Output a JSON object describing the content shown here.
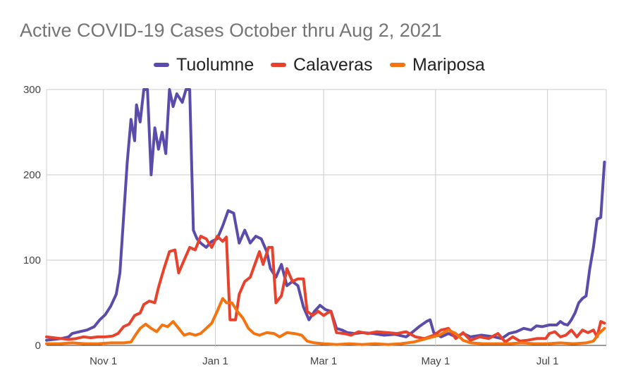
{
  "chart_data": {
    "type": "line",
    "title": "Active COVID-19 Cases October thru Aug 2, 2021",
    "xlabel": "",
    "ylabel": "",
    "ylim": [
      0,
      300
    ],
    "y_ticks": [
      "0",
      "100",
      "200",
      "300"
    ],
    "x_range": [
      "2020-10-01",
      "2021-08-02"
    ],
    "x_ticks": [
      {
        "date": "2020-11-01",
        "label": "Nov 1"
      },
      {
        "date": "2021-01-01",
        "label": "Jan 1"
      },
      {
        "date": "2021-03-01",
        "label": "Mar 1"
      },
      {
        "date": "2021-05-01",
        "label": "May 1"
      },
      {
        "date": "2021-07-01",
        "label": "Jul 1"
      }
    ],
    "grid": true,
    "legend_position": "top",
    "series": [
      {
        "name": "Tuolumne",
        "color": "#5b4bab",
        "points": [
          [
            "2020-10-01",
            6
          ],
          [
            "2020-10-05",
            7
          ],
          [
            "2020-10-09",
            8
          ],
          [
            "2020-10-13",
            10
          ],
          [
            "2020-10-15",
            14
          ],
          [
            "2020-10-19",
            16
          ],
          [
            "2020-10-23",
            18
          ],
          [
            "2020-10-27",
            22
          ],
          [
            "2020-10-30",
            30
          ],
          [
            "2020-11-02",
            36
          ],
          [
            "2020-11-05",
            46
          ],
          [
            "2020-11-08",
            60
          ],
          [
            "2020-11-10",
            85
          ],
          [
            "2020-11-12",
            150
          ],
          [
            "2020-11-14",
            215
          ],
          [
            "2020-11-16",
            265
          ],
          [
            "2020-11-18",
            240
          ],
          [
            "2020-11-19",
            282
          ],
          [
            "2020-11-21",
            262
          ],
          [
            "2020-11-23",
            300
          ],
          [
            "2020-11-25",
            300
          ],
          [
            "2020-11-27",
            200
          ],
          [
            "2020-11-29",
            255
          ],
          [
            "2020-12-01",
            230
          ],
          [
            "2020-12-03",
            250
          ],
          [
            "2020-12-05",
            225
          ],
          [
            "2020-12-07",
            300
          ],
          [
            "2020-12-09",
            280
          ],
          [
            "2020-12-11",
            295
          ],
          [
            "2020-12-14",
            285
          ],
          [
            "2020-12-16",
            300
          ],
          [
            "2020-12-18",
            300
          ],
          [
            "2020-12-20",
            135
          ],
          [
            "2020-12-22",
            125
          ],
          [
            "2020-12-24",
            120
          ],
          [
            "2020-12-27",
            115
          ],
          [
            "2020-12-30",
            122
          ],
          [
            "2021-01-02",
            125
          ],
          [
            "2021-01-05",
            140
          ],
          [
            "2021-01-08",
            158
          ],
          [
            "2021-01-11",
            155
          ],
          [
            "2021-01-14",
            120
          ],
          [
            "2021-01-17",
            135
          ],
          [
            "2021-01-20",
            120
          ],
          [
            "2021-01-23",
            128
          ],
          [
            "2021-01-26",
            125
          ],
          [
            "2021-01-29",
            110
          ],
          [
            "2021-01-31",
            90
          ],
          [
            "2021-02-03",
            80
          ],
          [
            "2021-02-06",
            95
          ],
          [
            "2021-02-09",
            70
          ],
          [
            "2021-02-12",
            75
          ],
          [
            "2021-02-15",
            70
          ],
          [
            "2021-02-18",
            45
          ],
          [
            "2021-02-21",
            30
          ],
          [
            "2021-02-24",
            40
          ],
          [
            "2021-02-27",
            47
          ],
          [
            "2021-03-02",
            42
          ],
          [
            "2021-03-05",
            40
          ],
          [
            "2021-03-08",
            20
          ],
          [
            "2021-03-11",
            18
          ],
          [
            "2021-03-14",
            15
          ],
          [
            "2021-03-18",
            14
          ],
          [
            "2021-03-22",
            15
          ],
          [
            "2021-03-28",
            14
          ],
          [
            "2021-04-03",
            12
          ],
          [
            "2021-04-09",
            13
          ],
          [
            "2021-04-15",
            10
          ],
          [
            "2021-04-18",
            15
          ],
          [
            "2021-04-22",
            22
          ],
          [
            "2021-04-26",
            28
          ],
          [
            "2021-04-28",
            30
          ],
          [
            "2021-04-30",
            15
          ],
          [
            "2021-05-04",
            10
          ],
          [
            "2021-05-08",
            14
          ],
          [
            "2021-05-12",
            10
          ],
          [
            "2021-05-16",
            14
          ],
          [
            "2021-05-20",
            10
          ],
          [
            "2021-05-26",
            12
          ],
          [
            "2021-06-02",
            10
          ],
          [
            "2021-06-06",
            8
          ],
          [
            "2021-06-10",
            14
          ],
          [
            "2021-06-14",
            16
          ],
          [
            "2021-06-18",
            20
          ],
          [
            "2021-06-22",
            18
          ],
          [
            "2021-06-25",
            23
          ],
          [
            "2021-06-28",
            22
          ],
          [
            "2021-07-02",
            24
          ],
          [
            "2021-07-06",
            24
          ],
          [
            "2021-07-08",
            28
          ],
          [
            "2021-07-10",
            25
          ],
          [
            "2021-07-12",
            24
          ],
          [
            "2021-07-14",
            30
          ],
          [
            "2021-07-16",
            38
          ],
          [
            "2021-07-18",
            50
          ],
          [
            "2021-07-20",
            55
          ],
          [
            "2021-07-22",
            58
          ],
          [
            "2021-07-24",
            90
          ],
          [
            "2021-07-26",
            115
          ],
          [
            "2021-07-28",
            148
          ],
          [
            "2021-07-30",
            150
          ],
          [
            "2021-08-01",
            215
          ]
        ]
      },
      {
        "name": "Calaveras",
        "color": "#e8412c",
        "points": [
          [
            "2020-10-01",
            10
          ],
          [
            "2020-10-05",
            9
          ],
          [
            "2020-10-09",
            8
          ],
          [
            "2020-10-13",
            7
          ],
          [
            "2020-10-17",
            8
          ],
          [
            "2020-10-21",
            10
          ],
          [
            "2020-10-25",
            9
          ],
          [
            "2020-10-29",
            10
          ],
          [
            "2020-11-02",
            10
          ],
          [
            "2020-11-06",
            11
          ],
          [
            "2020-11-09",
            14
          ],
          [
            "2020-11-12",
            22
          ],
          [
            "2020-11-15",
            25
          ],
          [
            "2020-11-18",
            35
          ],
          [
            "2020-11-21",
            38
          ],
          [
            "2020-11-23",
            48
          ],
          [
            "2020-11-26",
            52
          ],
          [
            "2020-11-29",
            50
          ],
          [
            "2020-12-01",
            68
          ],
          [
            "2020-12-04",
            90
          ],
          [
            "2020-12-07",
            110
          ],
          [
            "2020-12-10",
            112
          ],
          [
            "2020-12-12",
            85
          ],
          [
            "2020-12-15",
            100
          ],
          [
            "2020-12-18",
            115
          ],
          [
            "2020-12-21",
            112
          ],
          [
            "2020-12-24",
            128
          ],
          [
            "2020-12-27",
            125
          ],
          [
            "2020-12-30",
            115
          ],
          [
            "2021-01-02",
            128
          ],
          [
            "2021-01-05",
            122
          ],
          [
            "2021-01-07",
            127
          ],
          [
            "2021-01-09",
            30
          ],
          [
            "2021-01-12",
            30
          ],
          [
            "2021-01-14",
            60
          ],
          [
            "2021-01-17",
            75
          ],
          [
            "2021-01-20",
            80
          ],
          [
            "2021-01-22",
            92
          ],
          [
            "2021-01-25",
            110
          ],
          [
            "2021-01-27",
            95
          ],
          [
            "2021-01-30",
            115
          ],
          [
            "2021-02-01",
            115
          ],
          [
            "2021-02-03",
            50
          ],
          [
            "2021-02-06",
            58
          ],
          [
            "2021-02-09",
            90
          ],
          [
            "2021-02-12",
            75
          ],
          [
            "2021-02-15",
            78
          ],
          [
            "2021-02-18",
            78
          ],
          [
            "2021-02-20",
            40
          ],
          [
            "2021-02-23",
            35
          ],
          [
            "2021-02-26",
            40
          ],
          [
            "2021-03-01",
            35
          ],
          [
            "2021-03-03",
            38
          ],
          [
            "2021-03-05",
            40
          ],
          [
            "2021-03-08",
            15
          ],
          [
            "2021-03-12",
            14
          ],
          [
            "2021-03-16",
            12
          ],
          [
            "2021-03-20",
            16
          ],
          [
            "2021-03-25",
            14
          ],
          [
            "2021-03-30",
            16
          ],
          [
            "2021-04-05",
            15
          ],
          [
            "2021-04-10",
            14
          ],
          [
            "2021-04-15",
            16
          ],
          [
            "2021-04-20",
            10
          ],
          [
            "2021-04-25",
            8
          ],
          [
            "2021-04-30",
            12
          ],
          [
            "2021-05-04",
            18
          ],
          [
            "2021-05-08",
            20
          ],
          [
            "2021-05-12",
            8
          ],
          [
            "2021-05-16",
            15
          ],
          [
            "2021-05-20",
            6
          ],
          [
            "2021-05-25",
            10
          ],
          [
            "2021-05-30",
            8
          ],
          [
            "2021-06-04",
            14
          ],
          [
            "2021-06-08",
            4
          ],
          [
            "2021-06-12",
            10
          ],
          [
            "2021-06-16",
            5
          ],
          [
            "2021-06-20",
            6
          ],
          [
            "2021-06-25",
            8
          ],
          [
            "2021-06-30",
            8
          ],
          [
            "2021-07-02",
            14
          ],
          [
            "2021-07-05",
            16
          ],
          [
            "2021-07-08",
            10
          ],
          [
            "2021-07-11",
            12
          ],
          [
            "2021-07-14",
            18
          ],
          [
            "2021-07-17",
            10
          ],
          [
            "2021-07-20",
            18
          ],
          [
            "2021-07-23",
            15
          ],
          [
            "2021-07-26",
            18
          ],
          [
            "2021-07-28",
            10
          ],
          [
            "2021-07-30",
            28
          ],
          [
            "2021-08-01",
            26
          ]
        ]
      },
      {
        "name": "Mariposa",
        "color": "#f5740f",
        "points": [
          [
            "2020-10-01",
            2
          ],
          [
            "2020-10-08",
            2
          ],
          [
            "2020-10-15",
            3
          ],
          [
            "2020-10-22",
            2
          ],
          [
            "2020-10-29",
            2
          ],
          [
            "2020-11-05",
            3
          ],
          [
            "2020-11-12",
            3
          ],
          [
            "2020-11-16",
            4
          ],
          [
            "2020-11-19",
            14
          ],
          [
            "2020-11-21",
            20
          ],
          [
            "2020-11-24",
            25
          ],
          [
            "2020-11-27",
            20
          ],
          [
            "2020-11-30",
            16
          ],
          [
            "2020-12-03",
            24
          ],
          [
            "2020-12-06",
            22
          ],
          [
            "2020-12-09",
            28
          ],
          [
            "2020-12-12",
            20
          ],
          [
            "2020-12-15",
            12
          ],
          [
            "2020-12-18",
            14
          ],
          [
            "2020-12-21",
            12
          ],
          [
            "2020-12-24",
            14
          ],
          [
            "2020-12-27",
            20
          ],
          [
            "2020-12-30",
            26
          ],
          [
            "2021-01-02",
            40
          ],
          [
            "2021-01-05",
            55
          ],
          [
            "2021-01-07",
            50
          ],
          [
            "2021-01-10",
            50
          ],
          [
            "2021-01-13",
            40
          ],
          [
            "2021-01-16",
            32
          ],
          [
            "2021-01-19",
            20
          ],
          [
            "2021-01-22",
            14
          ],
          [
            "2021-01-25",
            12
          ],
          [
            "2021-01-29",
            15
          ],
          [
            "2021-02-02",
            14
          ],
          [
            "2021-02-05",
            10
          ],
          [
            "2021-02-09",
            15
          ],
          [
            "2021-02-13",
            14
          ],
          [
            "2021-02-17",
            12
          ],
          [
            "2021-02-20",
            5
          ],
          [
            "2021-02-24",
            3
          ],
          [
            "2021-03-01",
            2
          ],
          [
            "2021-03-08",
            1
          ],
          [
            "2021-03-15",
            2
          ],
          [
            "2021-03-22",
            1
          ],
          [
            "2021-03-29",
            2
          ],
          [
            "2021-04-05",
            1
          ],
          [
            "2021-04-12",
            2
          ],
          [
            "2021-04-19",
            4
          ],
          [
            "2021-04-26",
            8
          ],
          [
            "2021-05-03",
            12
          ],
          [
            "2021-05-08",
            18
          ],
          [
            "2021-05-12",
            14
          ],
          [
            "2021-05-16",
            6
          ],
          [
            "2021-05-20",
            3
          ],
          [
            "2021-05-27",
            2
          ],
          [
            "2021-06-03",
            2
          ],
          [
            "2021-06-10",
            2
          ],
          [
            "2021-06-17",
            3
          ],
          [
            "2021-06-24",
            2
          ],
          [
            "2021-07-01",
            2
          ],
          [
            "2021-07-08",
            3
          ],
          [
            "2021-07-15",
            2
          ],
          [
            "2021-07-22",
            3
          ],
          [
            "2021-07-26",
            5
          ],
          [
            "2021-07-29",
            14
          ],
          [
            "2021-08-01",
            20
          ]
        ]
      }
    ]
  }
}
